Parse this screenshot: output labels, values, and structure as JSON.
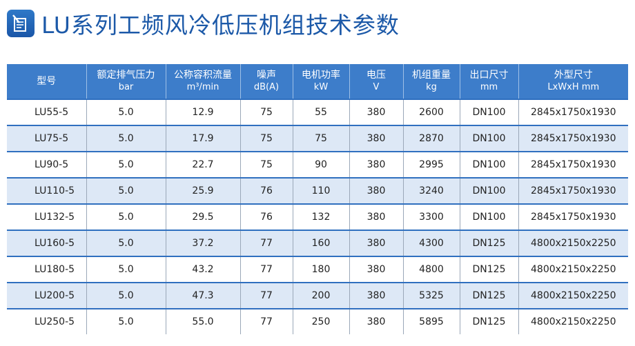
{
  "title": "LU系列工频风冷低压机组技术参数",
  "icon": "document-pen-icon",
  "colors": {
    "title": "#1c59a8",
    "header_bg": "#3d7dca",
    "row_alt": "#dde8f6",
    "rule": "#2f6fbf"
  },
  "columns": [
    {
      "label": "型号",
      "unit": ""
    },
    {
      "label": "额定排气压力",
      "unit": "bar"
    },
    {
      "label": "公称容积流量",
      "unit": "m³/min"
    },
    {
      "label": "噪声",
      "unit": "dB(A)"
    },
    {
      "label": "电机功率",
      "unit": "kW"
    },
    {
      "label": "电压",
      "unit": "V"
    },
    {
      "label": "机组重量",
      "unit": "kg"
    },
    {
      "label": "出口尺寸",
      "unit": "mm"
    },
    {
      "label": "外型尺寸",
      "unit": "LxWxH mm"
    }
  ],
  "rows": [
    [
      "LU55-5",
      "5.0",
      "12.9",
      "75",
      "55",
      "380",
      "2600",
      "DN100",
      "2845x1750x1930"
    ],
    [
      "LU75-5",
      "5.0",
      "17.9",
      "75",
      "75",
      "380",
      "2870",
      "DN100",
      "2845x1750x1930"
    ],
    [
      "LU90-5",
      "5.0",
      "22.7",
      "75",
      "90",
      "380",
      "2995",
      "DN100",
      "2845x1750x1930"
    ],
    [
      "LU110-5",
      "5.0",
      "25.9",
      "76",
      "110",
      "380",
      "3240",
      "DN100",
      "2845x1750x1930"
    ],
    [
      "LU132-5",
      "5.0",
      "29.5",
      "76",
      "132",
      "380",
      "3300",
      "DN100",
      "2845x1750x1930"
    ],
    [
      "LU160-5",
      "5.0",
      "37.2",
      "77",
      "160",
      "380",
      "4300",
      "DN125",
      "4800x2150x2250"
    ],
    [
      "LU180-5",
      "5.0",
      "43.2",
      "77",
      "180",
      "380",
      "4800",
      "DN125",
      "4800x2150x2250"
    ],
    [
      "LU200-5",
      "5.0",
      "47.3",
      "77",
      "200",
      "380",
      "5325",
      "DN125",
      "4800x2150x2250"
    ],
    [
      "LU250-5",
      "5.0",
      "55.0",
      "77",
      "250",
      "380",
      "5895",
      "DN125",
      "4800x2150x2250"
    ]
  ]
}
